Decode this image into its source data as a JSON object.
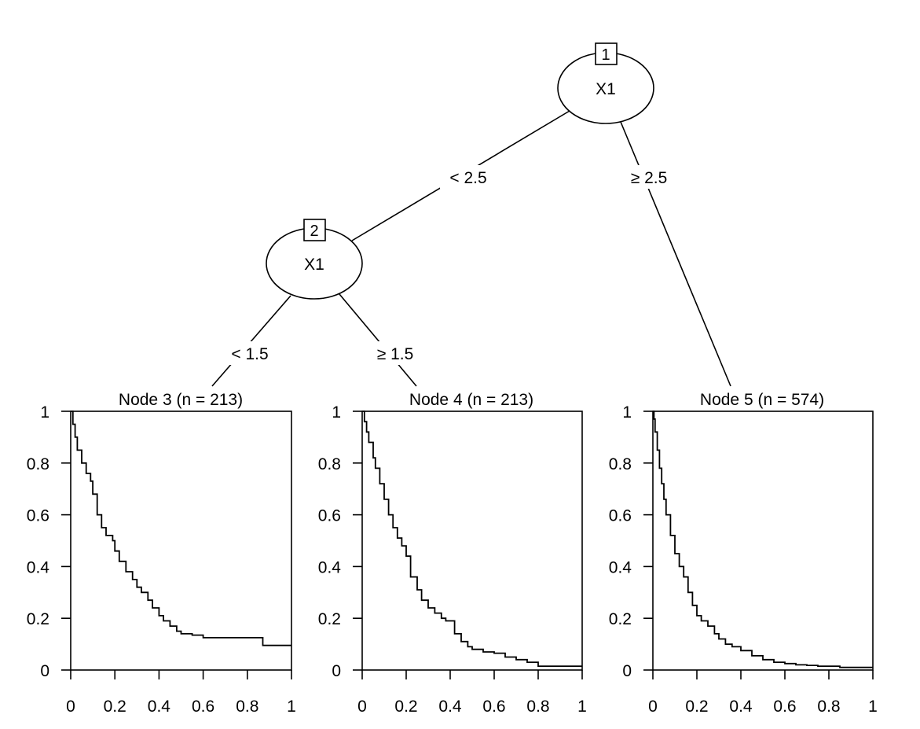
{
  "tree": {
    "inner_nodes": [
      {
        "id": "1",
        "variable": "X1"
      },
      {
        "id": "2",
        "variable": "X1"
      }
    ],
    "edges": [
      {
        "from": "1",
        "to": "2",
        "label": "< 2.5"
      },
      {
        "from": "1",
        "to": "5",
        "label": "≥ 2.5"
      },
      {
        "from": "2",
        "to": "3",
        "label": "< 1.5"
      },
      {
        "from": "2",
        "to": "4",
        "label": "≥ 1.5"
      }
    ]
  },
  "chart_data": [
    {
      "type": "line",
      "step": true,
      "title": "Node 3 (n = 213)",
      "xlim": [
        0,
        1
      ],
      "ylim": [
        0,
        1
      ],
      "x_ticks": [
        "0",
        "0.2",
        "0.4",
        "0.6",
        "0.8",
        "1"
      ],
      "y_ticks": [
        "0",
        "0.2",
        "0.4",
        "0.6",
        "0.8",
        "1"
      ],
      "x": [
        0,
        0.01,
        0.02,
        0.03,
        0.05,
        0.07,
        0.09,
        0.1,
        0.12,
        0.14,
        0.16,
        0.19,
        0.2,
        0.22,
        0.25,
        0.28,
        0.3,
        0.32,
        0.35,
        0.37,
        0.4,
        0.42,
        0.45,
        0.48,
        0.5,
        0.55,
        0.6,
        0.7,
        0.8,
        0.87,
        1.0
      ],
      "y": [
        1,
        0.95,
        0.9,
        0.85,
        0.8,
        0.76,
        0.73,
        0.68,
        0.6,
        0.55,
        0.52,
        0.5,
        0.46,
        0.42,
        0.38,
        0.35,
        0.32,
        0.3,
        0.27,
        0.24,
        0.21,
        0.19,
        0.17,
        0.15,
        0.14,
        0.135,
        0.125,
        0.125,
        0.125,
        0.095,
        0.095
      ]
    },
    {
      "type": "line",
      "step": true,
      "title": "Node 4 (n = 213)",
      "xlim": [
        0,
        1
      ],
      "ylim": [
        0,
        1
      ],
      "x_ticks": [
        "0",
        "0.2",
        "0.4",
        "0.6",
        "0.8",
        "1"
      ],
      "y_ticks": [
        "0",
        "0.2",
        "0.4",
        "0.6",
        "0.8",
        "1"
      ],
      "x": [
        0,
        0.01,
        0.02,
        0.03,
        0.05,
        0.06,
        0.08,
        0.1,
        0.12,
        0.14,
        0.16,
        0.18,
        0.2,
        0.22,
        0.25,
        0.27,
        0.3,
        0.33,
        0.36,
        0.38,
        0.42,
        0.45,
        0.48,
        0.5,
        0.55,
        0.6,
        0.65,
        0.7,
        0.75,
        0.8,
        1.0
      ],
      "y": [
        1,
        0.96,
        0.92,
        0.88,
        0.82,
        0.78,
        0.72,
        0.66,
        0.6,
        0.55,
        0.51,
        0.48,
        0.44,
        0.36,
        0.31,
        0.27,
        0.24,
        0.22,
        0.2,
        0.19,
        0.14,
        0.11,
        0.09,
        0.08,
        0.07,
        0.065,
        0.05,
        0.04,
        0.03,
        0.015,
        0.015
      ]
    },
    {
      "type": "line",
      "step": true,
      "title": "Node 5 (n = 574)",
      "xlim": [
        0,
        1
      ],
      "ylim": [
        0,
        1
      ],
      "x_ticks": [
        "0",
        "0.2",
        "0.4",
        "0.6",
        "0.8",
        "1"
      ],
      "y_ticks": [
        "0",
        "0.2",
        "0.4",
        "0.6",
        "0.8",
        "1"
      ],
      "x": [
        0,
        0.005,
        0.01,
        0.02,
        0.03,
        0.04,
        0.05,
        0.06,
        0.08,
        0.1,
        0.12,
        0.14,
        0.16,
        0.18,
        0.2,
        0.22,
        0.25,
        0.28,
        0.3,
        0.33,
        0.36,
        0.4,
        0.45,
        0.5,
        0.55,
        0.6,
        0.65,
        0.7,
        0.75,
        0.85,
        1.0
      ],
      "y": [
        1,
        0.97,
        0.92,
        0.85,
        0.78,
        0.72,
        0.66,
        0.6,
        0.52,
        0.45,
        0.4,
        0.36,
        0.3,
        0.25,
        0.21,
        0.19,
        0.17,
        0.14,
        0.12,
        0.1,
        0.09,
        0.075,
        0.055,
        0.04,
        0.03,
        0.025,
        0.02,
        0.018,
        0.015,
        0.01,
        0.01
      ]
    }
  ]
}
